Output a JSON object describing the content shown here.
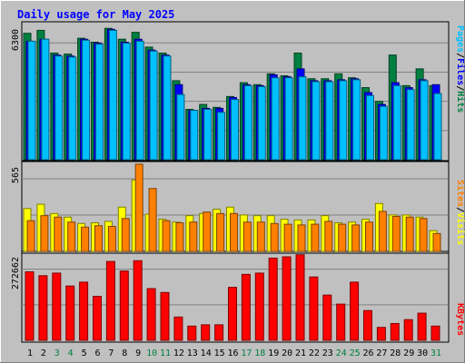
{
  "title": "Daily usage for May 2025",
  "colors": {
    "background": "#c0c0c0",
    "title": "#0000ff",
    "hits": "#008040",
    "files": "#0000ff",
    "pages": "#00c0ff",
    "visits": "#ffff00",
    "sites": "#ff8000",
    "kbytes": "#ff0000",
    "weekend_day_label": "#008040",
    "grid": "#808080"
  },
  "chart_data": [
    {
      "type": "bar",
      "title": "Daily usage for May 2025",
      "categories": [
        "1",
        "2",
        "3",
        "4",
        "5",
        "6",
        "7",
        "8",
        "9",
        "10",
        "11",
        "12",
        "13",
        "14",
        "15",
        "16",
        "17",
        "18",
        "19",
        "20",
        "21",
        "22",
        "23",
        "24",
        "25",
        "26",
        "27",
        "28",
        "29",
        "30",
        "31"
      ],
      "weekend_days": [
        "3",
        "4",
        "10",
        "11",
        "17",
        "18",
        "24",
        "25",
        "31"
      ],
      "ylabel_parts": [
        "Pages",
        "Files",
        "Hits"
      ],
      "ytick_label": "6300",
      "ylim": [
        0,
        6800
      ],
      "series": [
        {
          "name": "Hits",
          "values": [
            6400,
            6550,
            5400,
            5350,
            6150,
            5950,
            6650,
            6100,
            6450,
            5700,
            5400,
            4000,
            2550,
            2800,
            2650,
            3200,
            3900,
            3800,
            4350,
            4250,
            5400,
            4100,
            4100,
            4350,
            4150,
            3650,
            2950,
            5300,
            3750,
            4600,
            3750
          ]
        },
        {
          "name": "Files",
          "values": [
            6000,
            6100,
            5300,
            5250,
            6100,
            5900,
            6600,
            5950,
            6100,
            5550,
            5300,
            3800,
            2500,
            2600,
            2600,
            3150,
            3800,
            3750,
            4300,
            4200,
            4600,
            4000,
            4000,
            4050,
            4100,
            3400,
            2800,
            3900,
            3650,
            4050,
            3800
          ]
        },
        {
          "name": "Pages",
          "values": [
            6000,
            6100,
            5250,
            5200,
            6050,
            5850,
            6550,
            5900,
            6000,
            5500,
            5250,
            3300,
            2500,
            2550,
            2400,
            3050,
            3750,
            3700,
            4150,
            4150,
            4200,
            3950,
            3950,
            4000,
            4050,
            3250,
            2700,
            3750,
            3550,
            4000,
            3350
          ]
        }
      ]
    },
    {
      "type": "bar",
      "categories": [
        "1",
        "2",
        "3",
        "4",
        "5",
        "6",
        "7",
        "8",
        "9",
        "10",
        "11",
        "12",
        "13",
        "14",
        "15",
        "16",
        "17",
        "18",
        "19",
        "20",
        "21",
        "22",
        "23",
        "24",
        "25",
        "26",
        "27",
        "28",
        "29",
        "30",
        "31"
      ],
      "ylabel_parts": [
        "Sites",
        "Visits"
      ],
      "ytick_label": "565",
      "ylim": [
        0,
        610
      ],
      "series": [
        {
          "name": "Visits",
          "values": [
            300,
            330,
            265,
            240,
            195,
            200,
            210,
            310,
            500,
            260,
            225,
            205,
            250,
            265,
            295,
            310,
            255,
            250,
            250,
            225,
            220,
            220,
            250,
            200,
            205,
            225,
            335,
            255,
            255,
            240,
            145
          ]
        },
        {
          "name": "Sites",
          "values": [
            215,
            250,
            240,
            205,
            170,
            180,
            175,
            230,
            610,
            440,
            215,
            200,
            205,
            275,
            265,
            265,
            205,
            205,
            195,
            190,
            185,
            190,
            210,
            190,
            185,
            205,
            280,
            245,
            240,
            230,
            125
          ]
        }
      ]
    },
    {
      "type": "bar",
      "categories": [
        "1",
        "2",
        "3",
        "4",
        "5",
        "6",
        "7",
        "8",
        "9",
        "10",
        "11",
        "12",
        "13",
        "14",
        "15",
        "16",
        "17",
        "18",
        "19",
        "20",
        "21",
        "22",
        "23",
        "24",
        "25",
        "26",
        "27",
        "28",
        "29",
        "30",
        "31"
      ],
      "ylabel_parts": [
        "KBytes"
      ],
      "ytick_label": "272662",
      "ylim": [
        0,
        330000
      ],
      "series": [
        {
          "name": "KBytes",
          "values": [
            265000,
            250000,
            260000,
            210000,
            225000,
            170000,
            305000,
            268000,
            308000,
            200000,
            185000,
            90000,
            55000,
            60000,
            60000,
            205000,
            255000,
            260000,
            318000,
            323000,
            331000,
            245000,
            175000,
            140000,
            225000,
            115000,
            50000,
            65000,
            80000,
            105000,
            55000
          ]
        }
      ]
    }
  ]
}
